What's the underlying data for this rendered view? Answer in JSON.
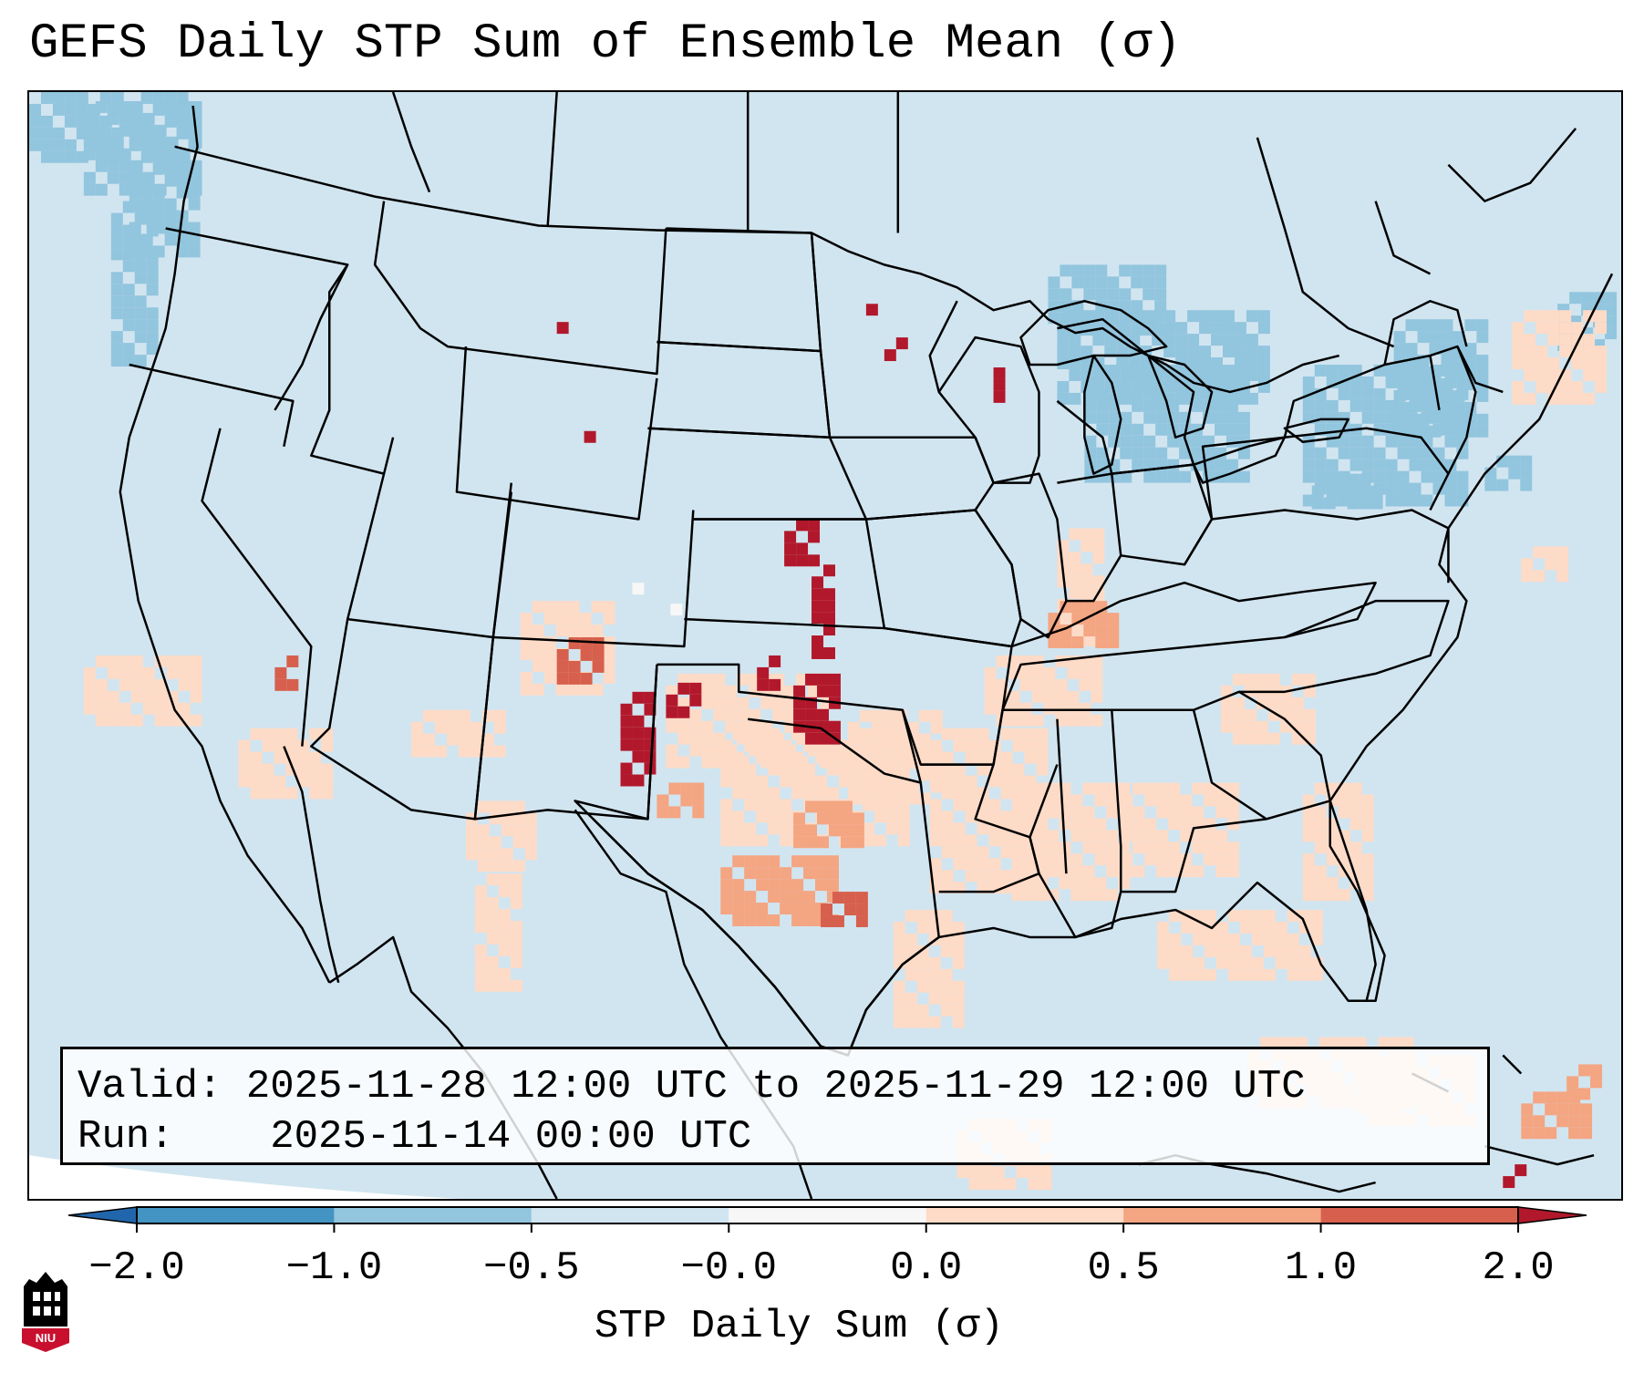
{
  "title": "GEFS Daily STP Sum of Ensemble Mean (σ)",
  "info": {
    "valid_label": "Valid:",
    "valid_value": "2025-11-28 12:00 UTC to 2025-11-29 12:00 UTC",
    "run_label": "Run:",
    "run_value": "2025-11-14 00:00 UTC"
  },
  "colorbar": {
    "label": "STP Daily Sum (σ)",
    "ticks": [
      "−2.0",
      "−1.0",
      "−0.5",
      "−0.0",
      "0.0",
      "0.5",
      "1.0",
      "2.0"
    ],
    "bins": [
      {
        "range": "< -2.0",
        "color": "#2166ac"
      },
      {
        "range": "-2.0 to -1.0",
        "color": "#4393c3"
      },
      {
        "range": "-1.0 to -0.5",
        "color": "#92c5de"
      },
      {
        "range": "-0.5 to -0.0",
        "color": "#d1e5f0"
      },
      {
        "range": "-0.0 to 0.0",
        "color": "#f7f7f7"
      },
      {
        "range": "0.0 to 0.5",
        "color": "#fddbc7"
      },
      {
        "range": "0.5 to 1.0",
        "color": "#f4a582"
      },
      {
        "range": "1.0 to 2.0",
        "color": "#d6604d"
      },
      {
        "range": "> 2.0",
        "color": "#b2182b"
      }
    ]
  },
  "logo_text": "NIU",
  "chart_data": {
    "type": "heatmap",
    "title": "GEFS Daily STP Sum of Ensemble Mean (σ)",
    "variable": "STP Daily Sum (σ)",
    "region": "Contiguous United States",
    "background_value_range": "-0.5 to -0.0",
    "highlights": [
      {
        "area": "Kansas / Oklahoma border (central Plains)",
        "category": "> 2.0"
      },
      {
        "area": "Eastern New Mexico",
        "category": "> 2.0"
      },
      {
        "area": "Texas Panhandle / western Oklahoma",
        "category": "1.0 to 2.0"
      },
      {
        "area": "Minnesota",
        "category": "> 2.0"
      },
      {
        "area": "Wyoming",
        "category": "> 2.0"
      },
      {
        "area": "North Texas / central Texas",
        "category": "0.5 to 1.0"
      },
      {
        "area": "Lower Mississippi Valley / Gulf Coast",
        "category": "0.0 to 0.5"
      },
      {
        "area": "Great Lakes / Northeast",
        "category": "-1.0 to -0.5"
      },
      {
        "area": "Pacific Northwest offshore",
        "category": "-1.0 to -0.5"
      }
    ]
  }
}
